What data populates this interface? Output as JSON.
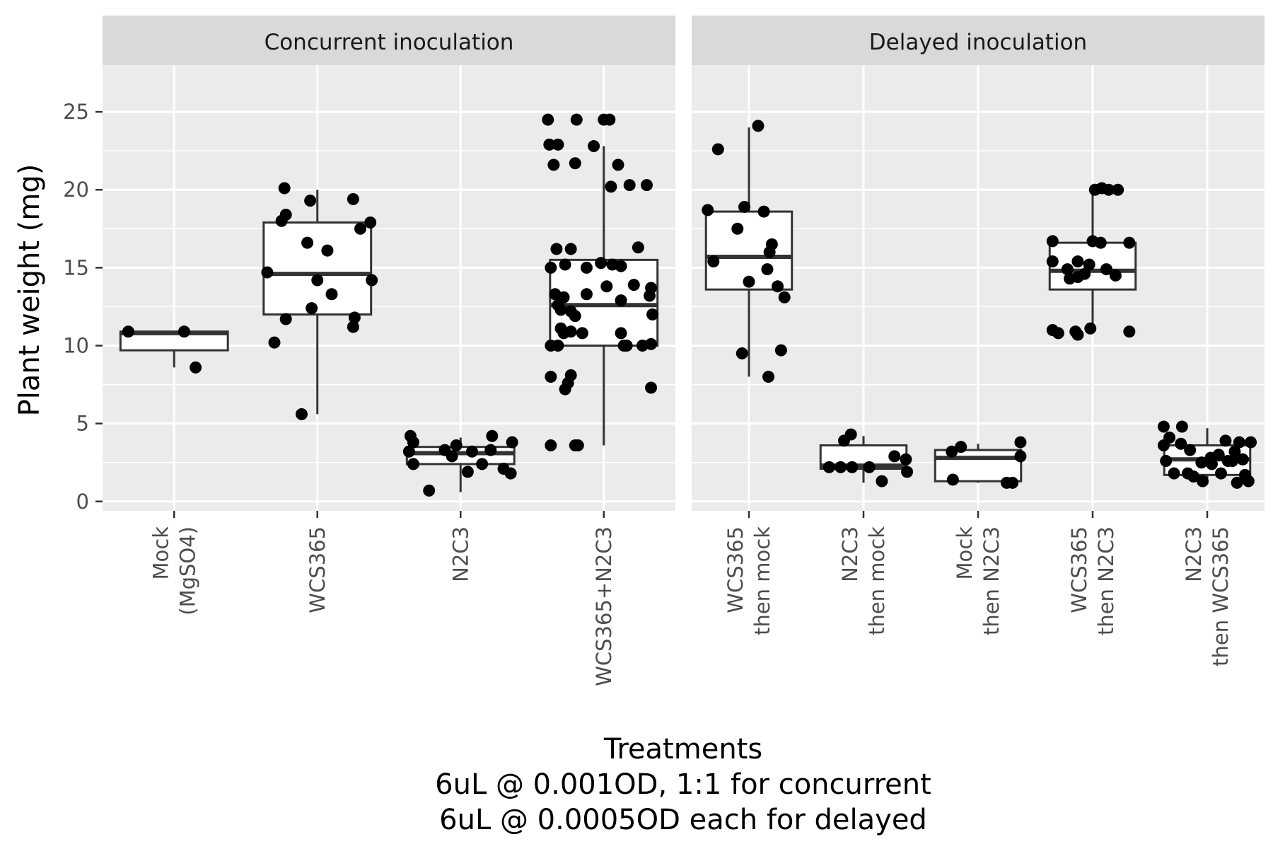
{
  "chart_data": {
    "type": "boxplot",
    "ylabel": "Plant weight (mg)",
    "xlabel_lines": [
      "Treatments",
      "6uL @ 0.001OD, 1:1 for concurrent",
      "6uL @ 0.0005OD each for delayed"
    ],
    "ylim": [
      -0.6,
      28
    ],
    "yticks": [
      0,
      5,
      10,
      15,
      20,
      25
    ],
    "colors": {
      "panel_bg": "#ebebeb",
      "grid": "#ffffff",
      "strip_bg": "#d9d9d9",
      "box_line": "#333333",
      "box_fill": "#ffffff",
      "point": "#000000"
    },
    "facets": [
      {
        "title": "Concurrent inoculation",
        "groups": [
          {
            "label": [
              "Mock",
              "(MgSO4)"
            ],
            "box": {
              "q1": 9.7,
              "median": 10.8,
              "q3": 10.9,
              "lo": 8.6,
              "hi": 10.9
            },
            "points": [
              [
                -0.32,
                10.9
              ],
              [
                0.07,
                10.9
              ],
              [
                0.15,
                8.6
              ]
            ]
          },
          {
            "label": [
              "WCS365"
            ],
            "box": {
              "q1": 12.0,
              "median": 14.6,
              "q3": 17.9,
              "lo": 5.6,
              "hi": 20.0
            },
            "points": [
              [
                -0.22,
                18.4
              ],
              [
                -0.25,
                18.0
              ],
              [
                -0.23,
                20.1
              ],
              [
                -0.05,
                19.3
              ],
              [
                0.25,
                19.4
              ],
              [
                0.37,
                17.9
              ],
              [
                0.3,
                17.5
              ],
              [
                -0.35,
                14.7
              ],
              [
                -0.07,
                16.6
              ],
              [
                0.07,
                16.1
              ],
              [
                0.0,
                14.2
              ],
              [
                0.38,
                14.2
              ],
              [
                0.1,
                13.3
              ],
              [
                -0.04,
                12.4
              ],
              [
                -0.22,
                11.7
              ],
              [
                0.26,
                11.8
              ],
              [
                0.25,
                11.2
              ],
              [
                -0.3,
                10.2
              ],
              [
                -0.11,
                5.6
              ]
            ]
          },
          {
            "label": [
              "N2C3"
            ],
            "box": {
              "q1": 2.4,
              "median": 3.1,
              "q3": 3.5,
              "lo": 0.6,
              "hi": 4.1
            },
            "points": [
              [
                -0.35,
                4.2
              ],
              [
                -0.33,
                3.8
              ],
              [
                -0.36,
                3.2
              ],
              [
                -0.33,
                2.4
              ],
              [
                -0.22,
                0.7
              ],
              [
                -0.11,
                3.3
              ],
              [
                -0.06,
                2.9
              ],
              [
                -0.03,
                3.6
              ],
              [
                0.05,
                1.9
              ],
              [
                0.08,
                3.2
              ],
              [
                0.15,
                2.4
              ],
              [
                0.21,
                3.3
              ],
              [
                0.22,
                4.2
              ],
              [
                0.3,
                2.1
              ],
              [
                0.35,
                1.8
              ],
              [
                0.36,
                3.8
              ]
            ]
          },
          {
            "label": [
              "WCS365+N2C3"
            ],
            "box": {
              "q1": 10.0,
              "median": 12.6,
              "q3": 15.5,
              "lo": 3.6,
              "hi": 22.8
            },
            "points": [
              [
                -0.39,
                24.5
              ],
              [
                -0.38,
                22.9
              ],
              [
                -0.32,
                22.9
              ],
              [
                -0.35,
                21.6
              ],
              [
                -0.19,
                24.5
              ],
              [
                -0.2,
                21.7
              ],
              [
                -0.07,
                22.8
              ],
              [
                0.0,
                24.5
              ],
              [
                0.04,
                24.5
              ],
              [
                0.1,
                21.6
              ],
              [
                0.05,
                20.2
              ],
              [
                0.18,
                20.3
              ],
              [
                0.3,
                20.3
              ],
              [
                -0.33,
                16.2
              ],
              [
                -0.23,
                16.2
              ],
              [
                -0.37,
                15.0
              ],
              [
                -0.27,
                15.2
              ],
              [
                -0.12,
                15.0
              ],
              [
                -0.02,
                15.3
              ],
              [
                0.06,
                15.2
              ],
              [
                0.12,
                15.1
              ],
              [
                0.24,
                16.3
              ],
              [
                -0.34,
                13.3
              ],
              [
                -0.32,
                12.6
              ],
              [
                -0.28,
                13.1
              ],
              [
                -0.23,
                12.2
              ],
              [
                -0.3,
                12.3
              ],
              [
                -0.12,
                13.3
              ],
              [
                -0.2,
                11.9
              ],
              [
                0.02,
                13.8
              ],
              [
                0.12,
                12.9
              ],
              [
                0.21,
                13.9
              ],
              [
                0.33,
                13.7
              ],
              [
                0.32,
                13.2
              ],
              [
                0.34,
                12.0
              ],
              [
                -0.3,
                11.1
              ],
              [
                -0.28,
                10.8
              ],
              [
                -0.23,
                10.9
              ],
              [
                -0.15,
                10.8
              ],
              [
                -0.37,
                10.0
              ],
              [
                -0.32,
                10.0
              ],
              [
                0.12,
                10.8
              ],
              [
                0.14,
                10.0
              ],
              [
                0.16,
                10.0
              ],
              [
                0.27,
                10.0
              ],
              [
                0.33,
                10.1
              ],
              [
                -0.37,
                8.0
              ],
              [
                -0.23,
                8.1
              ],
              [
                -0.25,
                7.6
              ],
              [
                -0.27,
                7.2
              ],
              [
                0.33,
                7.3
              ],
              [
                -0.37,
                3.6
              ],
              [
                -0.2,
                3.6
              ],
              [
                -0.18,
                3.6
              ]
            ]
          }
        ]
      },
      {
        "title": "Delayed inoculation",
        "groups": [
          {
            "label": [
              "WCS365",
              "then mock"
            ],
            "box": {
              "q1": 13.6,
              "median": 15.7,
              "q3": 18.6,
              "lo": 8.0,
              "hi": 24.0
            },
            "points": [
              [
                0.08,
                24.1
              ],
              [
                -0.27,
                22.6
              ],
              [
                -0.36,
                18.7
              ],
              [
                -0.04,
                18.9
              ],
              [
                0.13,
                18.6
              ],
              [
                -0.1,
                17.5
              ],
              [
                0.2,
                16.5
              ],
              [
                0.18,
                16.0
              ],
              [
                -0.31,
                15.4
              ],
              [
                0.16,
                14.9
              ],
              [
                0.0,
                14.1
              ],
              [
                0.31,
                13.1
              ],
              [
                0.25,
                13.8
              ],
              [
                0.28,
                9.7
              ],
              [
                -0.06,
                9.5
              ],
              [
                0.17,
                8.0
              ]
            ]
          },
          {
            "label": [
              "N2C3",
              "then mock"
            ],
            "box": {
              "q1": 2.1,
              "median": 2.3,
              "q3": 3.6,
              "lo": 1.2,
              "hi": 4.2
            },
            "points": [
              [
                -0.17,
                3.9
              ],
              [
                -0.11,
                4.3
              ],
              [
                -0.3,
                2.2
              ],
              [
                -0.2,
                2.2
              ],
              [
                -0.1,
                2.2
              ],
              [
                0.05,
                2.2
              ],
              [
                0.16,
                1.3
              ],
              [
                0.27,
                2.9
              ],
              [
                0.37,
                2.7
              ],
              [
                0.38,
                1.9
              ]
            ]
          },
          {
            "label": [
              "Mock",
              "then N2C3"
            ],
            "box": {
              "q1": 1.3,
              "median": 2.8,
              "q3": 3.3,
              "lo": 1.2,
              "hi": 3.7
            },
            "points": [
              [
                -0.23,
                3.2
              ],
              [
                -0.15,
                3.5
              ],
              [
                -0.22,
                1.4
              ],
              [
                0.25,
                1.2
              ],
              [
                0.3,
                1.2
              ],
              [
                0.37,
                2.9
              ],
              [
                0.37,
                3.8
              ]
            ]
          },
          {
            "label": [
              "WCS365",
              "then N2C3"
            ],
            "box": {
              "q1": 13.6,
              "median": 14.8,
              "q3": 16.6,
              "lo": 10.9,
              "hi": 20.0
            },
            "points": [
              [
                0.02,
                20.0
              ],
              [
                0.08,
                20.1
              ],
              [
                0.14,
                20.0
              ],
              [
                0.22,
                20.0
              ],
              [
                -0.35,
                16.7
              ],
              [
                0.0,
                16.7
              ],
              [
                0.07,
                16.6
              ],
              [
                0.32,
                16.6
              ],
              [
                -0.35,
                15.4
              ],
              [
                -0.22,
                14.9
              ],
              [
                -0.13,
                15.4
              ],
              [
                -0.03,
                15.2
              ],
              [
                0.12,
                14.9
              ],
              [
                0.2,
                14.5
              ],
              [
                -0.07,
                14.6
              ],
              [
                -0.13,
                14.4
              ],
              [
                -0.2,
                14.3
              ],
              [
                -0.35,
                11.0
              ],
              [
                -0.3,
                10.8
              ],
              [
                -0.15,
                10.9
              ],
              [
                -0.13,
                10.7
              ],
              [
                -0.02,
                11.1
              ],
              [
                0.32,
                10.9
              ]
            ]
          },
          {
            "label": [
              "N2C3",
              "then WCS365"
            ],
            "box": {
              "q1": 1.7,
              "median": 2.7,
              "q3": 3.6,
              "lo": 1.1,
              "hi": 4.7
            },
            "points": [
              [
                -0.38,
                4.8
              ],
              [
                -0.22,
                4.8
              ],
              [
                -0.33,
                4.1
              ],
              [
                -0.23,
                3.7
              ],
              [
                -0.38,
                3.6
              ],
              [
                -0.15,
                3.3
              ],
              [
                -0.36,
                2.6
              ],
              [
                -0.29,
                1.8
              ],
              [
                -0.17,
                1.8
              ],
              [
                -0.12,
                1.6
              ],
              [
                -0.04,
                1.3
              ],
              [
                -0.05,
                2.5
              ],
              [
                0.03,
                2.8
              ],
              [
                0.1,
                3.0
              ],
              [
                0.04,
                2.4
              ],
              [
                0.12,
                1.8
              ],
              [
                0.16,
                3.9
              ],
              [
                0.18,
                2.6
              ],
              [
                0.22,
                2.6
              ],
              [
                0.24,
                3.2
              ],
              [
                0.26,
                1.2
              ],
              [
                0.28,
                3.8
              ],
              [
                0.31,
                2.7
              ],
              [
                0.33,
                1.7
              ],
              [
                0.36,
                1.3
              ],
              [
                0.38,
                3.8
              ]
            ]
          }
        ]
      }
    ]
  }
}
